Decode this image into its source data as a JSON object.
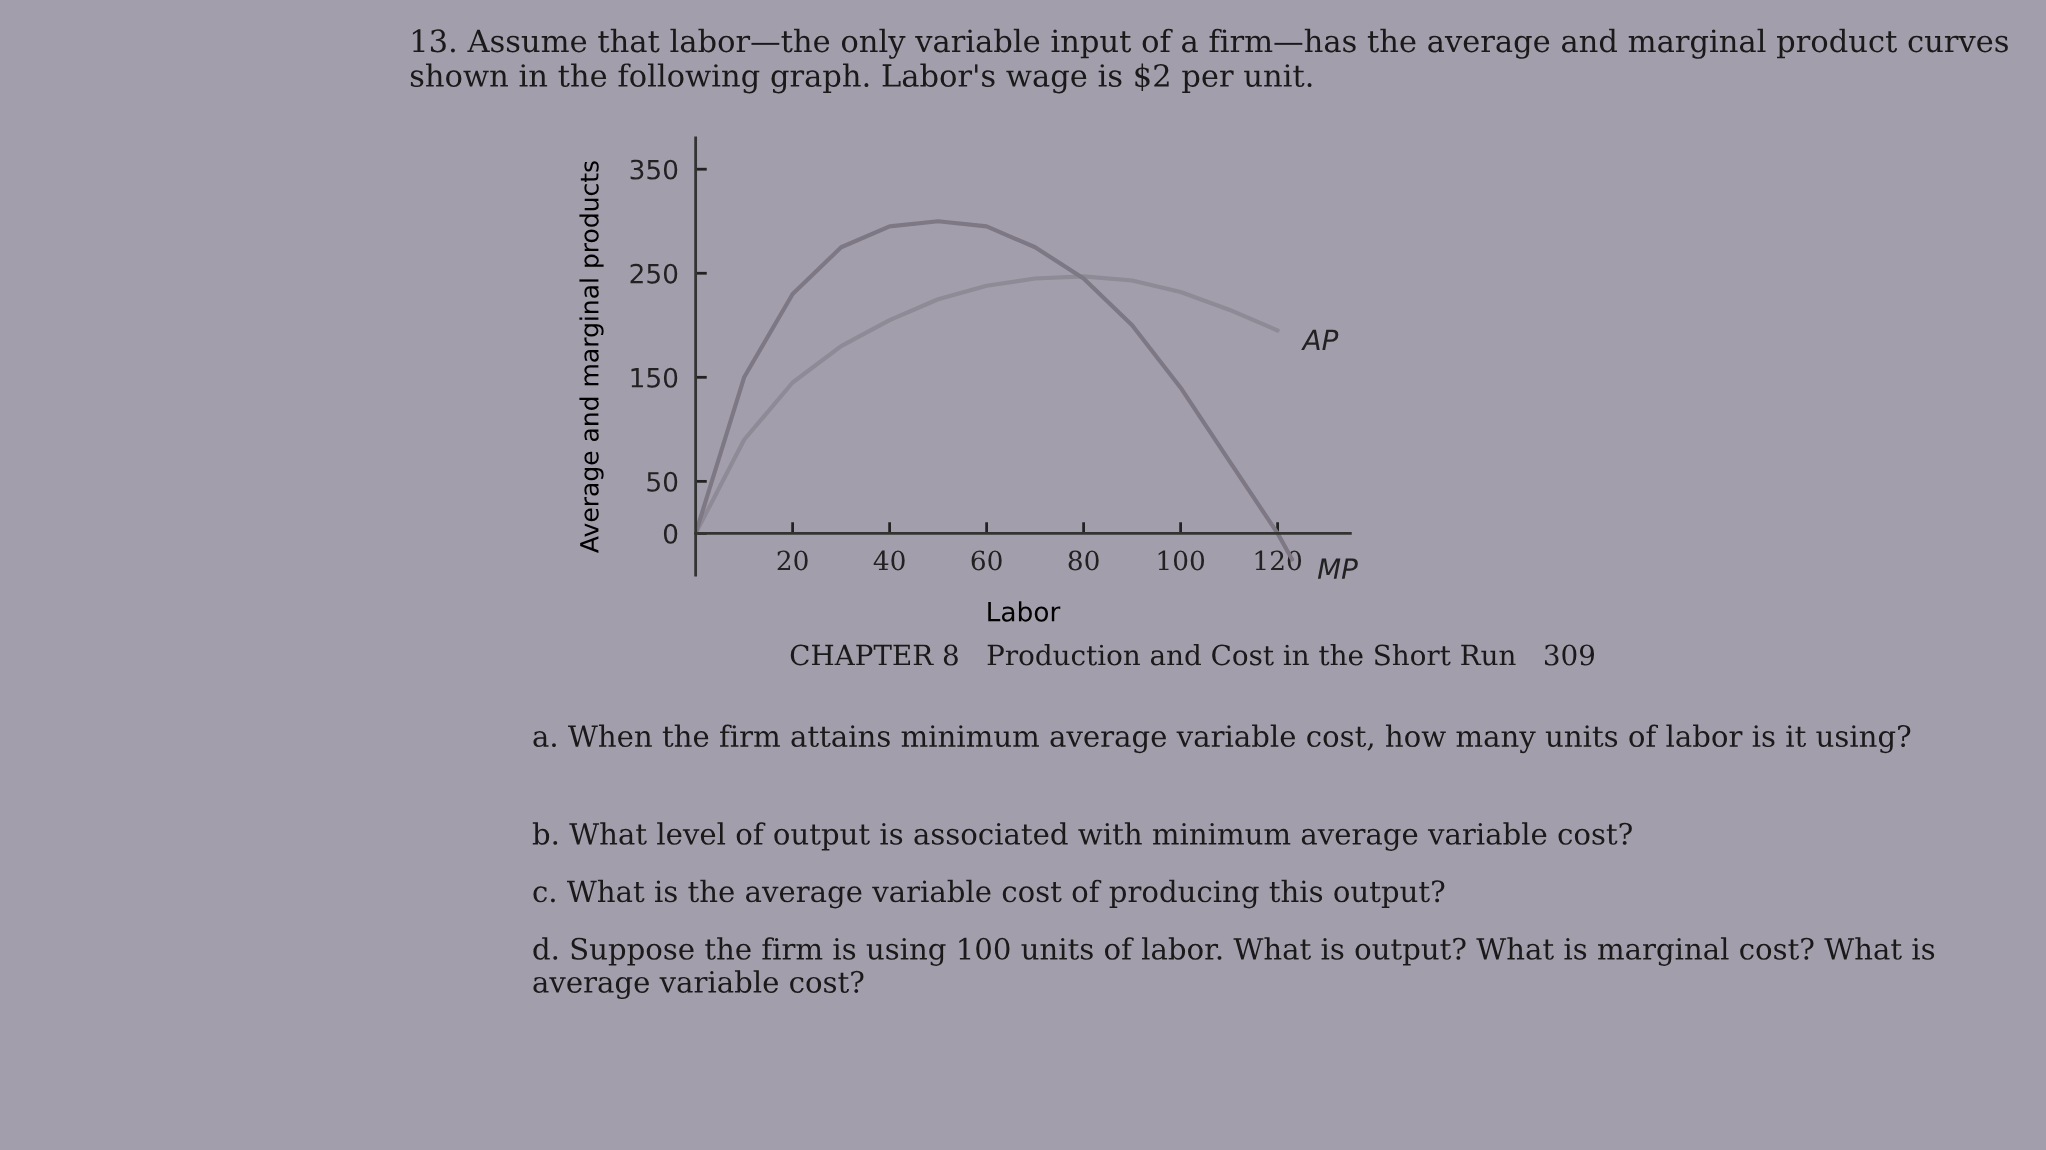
{
  "chart_data": {
    "type": "line",
    "title": "13. Assume that labor—the only variable input of a firm—has the average and marginal product curves shown in the following graph. Labor's wage is $2 per unit.",
    "xlabel": "Labor",
    "ylabel": "Average and marginal products",
    "x": [
      0,
      10,
      20,
      30,
      40,
      50,
      60,
      70,
      80,
      90,
      100,
      110,
      120,
      123
    ],
    "series": [
      {
        "name": "AP",
        "color": "#8e8a96",
        "x": [
          0,
          10,
          20,
          30,
          40,
          50,
          60,
          70,
          80,
          90,
          100,
          110,
          120
        ],
        "values": [
          0,
          90,
          145,
          180,
          205,
          225,
          238,
          245,
          247,
          243,
          232,
          215,
          195
        ]
      },
      {
        "name": "MP",
        "color": "#7d7884",
        "values": [
          0,
          150,
          230,
          275,
          295,
          300,
          295,
          275,
          245,
          200,
          140,
          70,
          0,
          -25
        ]
      }
    ],
    "xlim": [
      0,
      135
    ],
    "ylim": [
      -40,
      380
    ],
    "xticks": [
      20,
      40,
      60,
      80,
      100,
      120
    ],
    "yticks": [
      0,
      50,
      150,
      250,
      350
    ],
    "grid": false,
    "annotations": [
      "CHAPTER 8   Production and Cost in the Short Run   309",
      "a. When the firm attains minimum average variable cost, how many units of labor is it using?",
      "b. What level of output is associated with minimum average variable cost?",
      "c. What is the average variable cost of producing this output?",
      "d. Suppose the firm is using 100 units of labor. What is output? What is marginal cost? What is average variable cost?"
    ]
  }
}
